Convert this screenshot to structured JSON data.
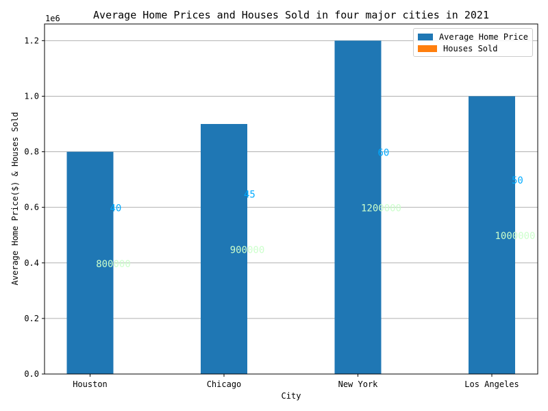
{
  "chart_data": {
    "type": "bar",
    "title": "Average Home Prices and Houses Sold in four major cities in 2021",
    "xlabel": "City",
    "ylabel": "Average Home Price($) & Houses Sold",
    "y_scale_label": "1e6",
    "ylim": [
      0,
      1260000
    ],
    "yticks": [
      0,
      200000,
      400000,
      600000,
      800000,
      1000000,
      1200000
    ],
    "ytick_labels": [
      "0.0",
      "0.2",
      "0.4",
      "0.6",
      "0.8",
      "1.0",
      "1.2"
    ],
    "grid": "horizontal",
    "legend_position": "top-right",
    "categories": [
      "Houston",
      "Chicago",
      "New York",
      "Los Angeles"
    ],
    "series": [
      {
        "name": "Average Home Price",
        "color": "#1f77b4",
        "values": [
          800000,
          900000,
          1200000,
          1000000
        ]
      },
      {
        "name": "Houses Sold",
        "color": "#ff7f0e",
        "values": [
          40,
          45,
          60,
          50
        ]
      }
    ],
    "annotations": {
      "price_labels": [
        "800000",
        "900000",
        "1200000",
        "1000000"
      ],
      "price_label_color": "#ccffcc",
      "sold_labels": [
        "40",
        "45",
        "60",
        "50"
      ],
      "sold_label_color": "#00aaff"
    }
  }
}
